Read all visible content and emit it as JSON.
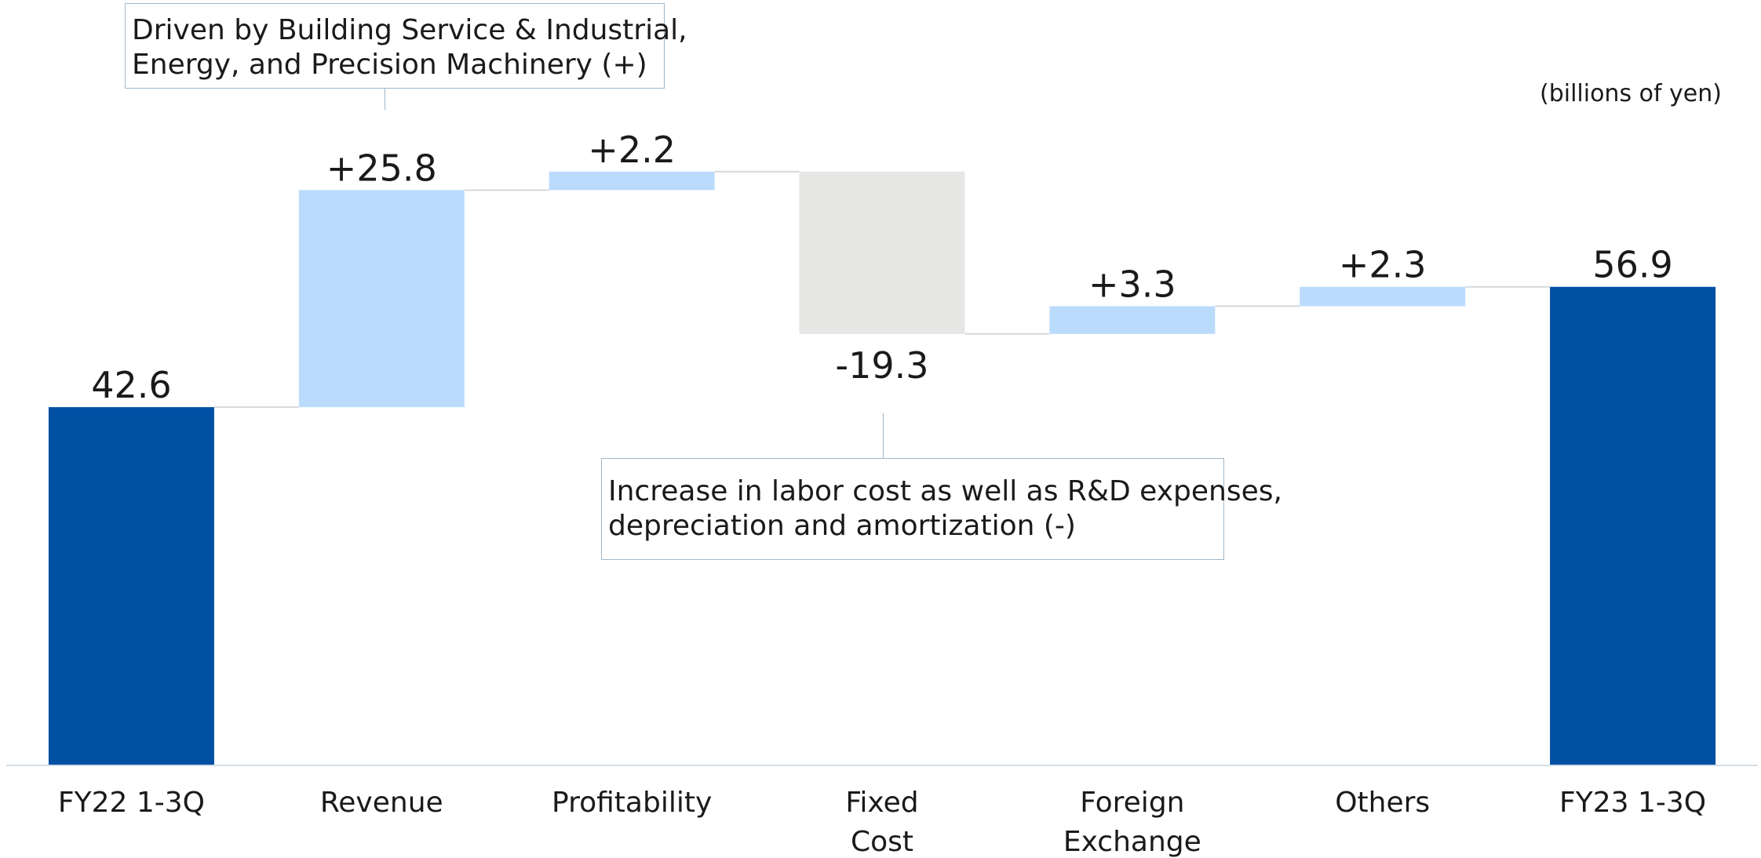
{
  "unit_label": "(billions of yen)",
  "annotations": {
    "revenue": {
      "lines": [
        "Driven by Building Service & Industrial,",
        "Energy, and Precision Machinery (+)"
      ]
    },
    "fixed_cost": {
      "lines": [
        "Increase in labor cost as well as R&D expenses,",
        "depreciation and amortization (-)"
      ]
    }
  },
  "chart_data": {
    "type": "bar",
    "subtype": "waterfall",
    "title": "",
    "xlabel": "",
    "ylabel": "",
    "grid": false,
    "legend": "none",
    "ylim": [
      0,
      80
    ],
    "categories": [
      [
        "FY22 1-3Q"
      ],
      [
        "Revenue"
      ],
      [
        "Profitability"
      ],
      [
        "Fixed",
        "Cost"
      ],
      [
        "Foreign",
        "Exchange"
      ],
      [
        "Others"
      ],
      [
        "FY23 1-3Q"
      ]
    ],
    "steps": [
      {
        "kind": "total",
        "value": 42.6,
        "label": "42.6"
      },
      {
        "kind": "delta",
        "value": 25.8,
        "label": "+25.8"
      },
      {
        "kind": "delta",
        "value": 2.2,
        "label": "+2.2"
      },
      {
        "kind": "delta",
        "value": -19.3,
        "label": "-19.3"
      },
      {
        "kind": "delta",
        "value": 3.3,
        "label": "+3.3"
      },
      {
        "kind": "delta",
        "value": 2.3,
        "label": "+2.3"
      },
      {
        "kind": "total",
        "value": 56.9,
        "label": "56.9"
      }
    ],
    "colors": {
      "total": "#0050a4",
      "increase": "#bbdbfc",
      "decrease": "#e6e6e4",
      "connector": "#d4d9dd",
      "axis": "#d4dde5"
    }
  }
}
